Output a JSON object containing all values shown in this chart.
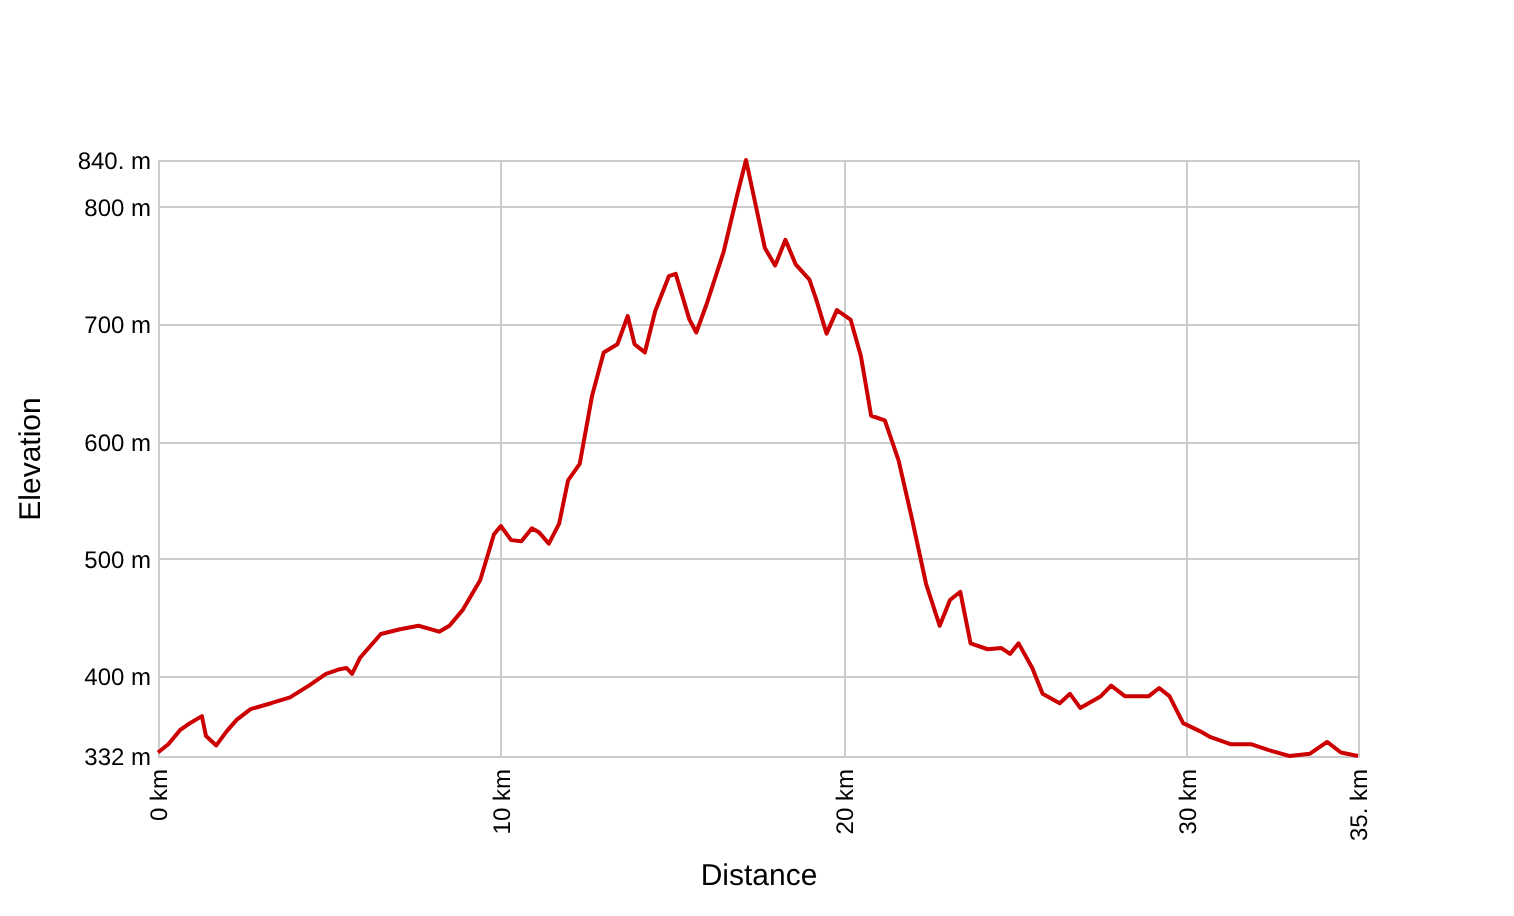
{
  "chart_data": {
    "type": "line",
    "xlabel": "Distance",
    "ylabel": "Elevation",
    "x": [
      0,
      0.3,
      0.64,
      0.93,
      1.28,
      1.4,
      1.7,
      2.0,
      2.3,
      2.7,
      3.3,
      3.85,
      4.4,
      4.9,
      5.3,
      5.5,
      5.66,
      5.9,
      6.5,
      7.06,
      7.6,
      8.2,
      8.5,
      8.9,
      9.4,
      9.8,
      10.0,
      10.3,
      10.6,
      10.9,
      11.1,
      11.4,
      11.7,
      11.96,
      12.3,
      12.66,
      13.0,
      13.4,
      13.7,
      13.9,
      14.2,
      14.5,
      14.9,
      15.1,
      15.5,
      15.7,
      16.0,
      16.5,
      16.9,
      17.15,
      17.4,
      17.7,
      18.0,
      18.3,
      18.6,
      19.0,
      19.2,
      19.5,
      19.8,
      20.2,
      20.5,
      20.8,
      21.2,
      21.6,
      22.0,
      22.4,
      22.8,
      23.1,
      23.4,
      23.7,
      24.2,
      24.6,
      24.85,
      25.1,
      25.5,
      25.8,
      26.3,
      26.6,
      26.9,
      27.5,
      27.8,
      28.2,
      28.9,
      29.2,
      29.5,
      29.9,
      30.4,
      30.7,
      31.3,
      31.9,
      32.4,
      33.0,
      33.6,
      34.1,
      34.5,
      35.0
    ],
    "series": [
      {
        "color": "#cc0000",
        "values": [
          335,
          342,
          354,
          360,
          366,
          349,
          341,
          353,
          363,
          372,
          377,
          382,
          392,
          402,
          406,
          407,
          402,
          416,
          436,
          440,
          443,
          438,
          443,
          457,
          482,
          521,
          528,
          516,
          515,
          526,
          523,
          513,
          530,
          567,
          581,
          639,
          676,
          683,
          707,
          683,
          676,
          711,
          741,
          743,
          704,
          693,
          717,
          762,
          811,
          840,
          806,
          765,
          750,
          772,
          751,
          738,
          721,
          692,
          712,
          704,
          673,
          622,
          618,
          584,
          533,
          479,
          443,
          465,
          472,
          428,
          423,
          424,
          419,
          428,
          407,
          385,
          377,
          385,
          373,
          383,
          392,
          383,
          383,
          390,
          383,
          360,
          353,
          348,
          342,
          342,
          337,
          332,
          334,
          344,
          335,
          332
        ]
      }
    ],
    "xlim": [
      0,
      35
    ],
    "ylim": [
      332,
      840
    ],
    "xticks": [
      {
        "value": 0,
        "label": "0 km"
      },
      {
        "value": 10,
        "label": "10 km"
      },
      {
        "value": 20,
        "label": "20 km"
      },
      {
        "value": 30,
        "label": "30 km"
      },
      {
        "value": 35,
        "label": "35. km"
      }
    ],
    "yticks": [
      {
        "value": 332,
        "label": "332 m"
      },
      {
        "value": 400,
        "label": "400 m"
      },
      {
        "value": 500,
        "label": "500 m"
      },
      {
        "value": 600,
        "label": "600 m"
      },
      {
        "value": 700,
        "label": "700 m"
      },
      {
        "value": 800,
        "label": "800 m"
      },
      {
        "value": 840,
        "label": "840. m"
      }
    ],
    "grid": true,
    "legend": false,
    "marker": "none",
    "line_style": "solid"
  }
}
